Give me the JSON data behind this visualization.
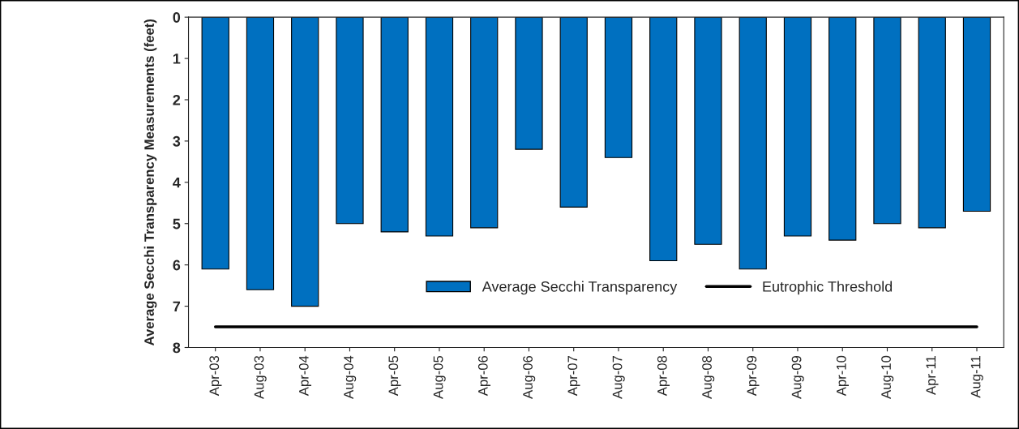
{
  "chart_data": {
    "type": "bar",
    "ylabel": "Average Secchi Transparency Measurements (feet)",
    "categories": [
      "Apr-03",
      "Aug-03",
      "Apr-04",
      "Aug-04",
      "Apr-05",
      "Aug-05",
      "Apr-06",
      "Aug-06",
      "Apr-07",
      "Aug-07",
      "Apr-08",
      "Aug-08",
      "Apr-09",
      "Aug-09",
      "Apr-10",
      "Aug-10",
      "Apr-11",
      "Aug-11"
    ],
    "series": [
      {
        "name": "Average Secchi Transparency",
        "color": "#0070c0",
        "values": [
          6.1,
          6.6,
          7.0,
          5.0,
          5.2,
          5.3,
          5.1,
          3.2,
          4.6,
          3.4,
          5.9,
          5.5,
          6.1,
          5.3,
          5.4,
          5.0,
          5.1,
          4.7
        ]
      },
      {
        "name": "Eutrophic Threshold",
        "type": "line",
        "color": "#000000",
        "values": [
          7.5,
          7.5,
          7.5,
          7.5,
          7.5,
          7.5,
          7.5,
          7.5,
          7.5,
          7.5,
          7.5,
          7.5,
          7.5,
          7.5,
          7.5,
          7.5,
          7.5,
          7.5
        ]
      }
    ],
    "ylim": [
      8,
      0
    ],
    "yticks": [
      0,
      1,
      2,
      3,
      4,
      5,
      6,
      7,
      8
    ],
    "grid": false,
    "legend": "bottom right",
    "marker": "none",
    "line_style": "solid"
  }
}
